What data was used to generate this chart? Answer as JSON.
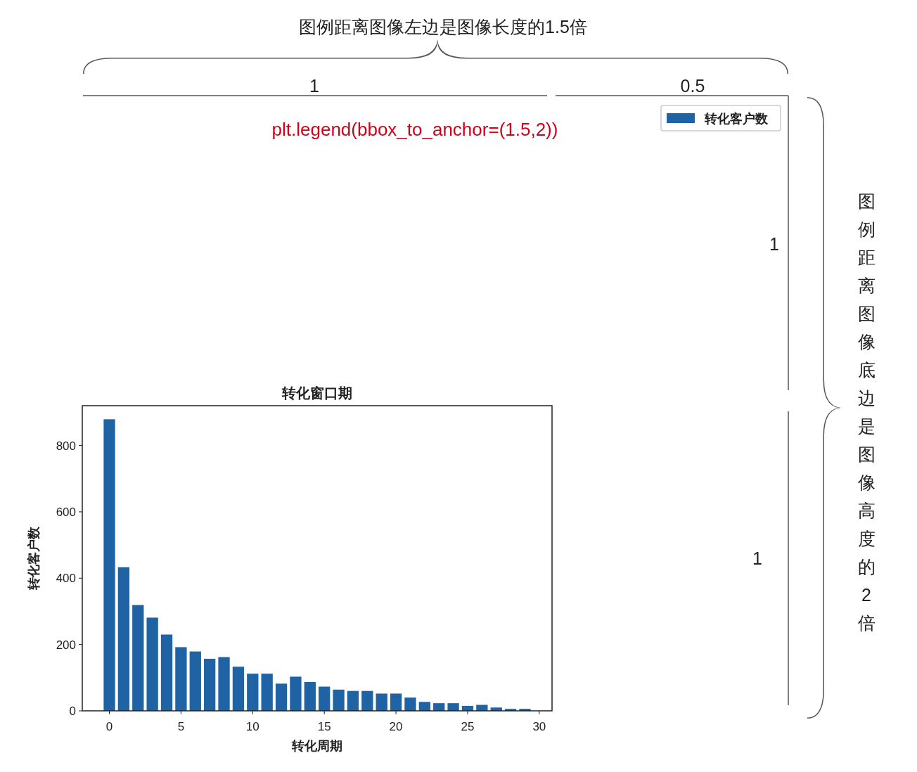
{
  "chart_data": {
    "type": "bar",
    "title": "转化窗口期",
    "xlabel": "转化周期",
    "ylabel": "转化客户数",
    "x": [
      0,
      1,
      2,
      3,
      4,
      5,
      6,
      7,
      8,
      9,
      10,
      11,
      12,
      13,
      14,
      15,
      16,
      17,
      18,
      19,
      20,
      21,
      22,
      23,
      24,
      25,
      26,
      27,
      28,
      29
    ],
    "series": [
      {
        "name": "转化客户数",
        "color": "#1f63a5",
        "values": [
          879,
          433,
          319,
          281,
          230,
          192,
          179,
          157,
          162,
          133,
          112,
          112,
          82,
          103,
          87,
          73,
          64,
          60,
          60,
          52,
          52,
          40,
          27,
          23,
          23,
          15,
          18,
          10,
          6,
          6
        ]
      }
    ],
    "xlim": [
      -1.89,
      30.89
    ],
    "xticks": [
      0,
      5,
      10,
      15,
      20,
      25,
      30
    ],
    "ylim": [
      0,
      920
    ],
    "yticks": [
      0,
      200,
      400,
      600,
      800
    ],
    "legend": "top right",
    "grid": false,
    "annotations": [
      "图例距离图像左边是图像长度的1.5倍",
      "1",
      "0.5",
      "plt.legend(bbox_to_anchor=(1.5,2))",
      "1",
      "1",
      "图例距离图像底边是图像高度的2倍"
    ]
  }
}
